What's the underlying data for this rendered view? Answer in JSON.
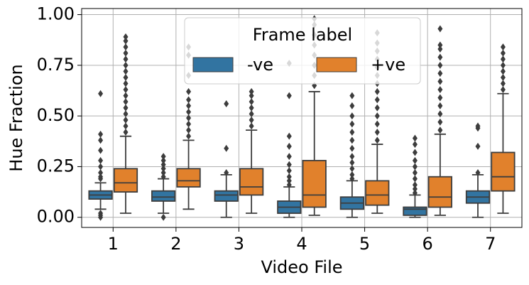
{
  "chart_data": {
    "type": "box",
    "xlabel": "Video File",
    "ylabel": "Hue Fraction",
    "categories": [
      "1",
      "2",
      "3",
      "4",
      "5",
      "6",
      "7"
    ],
    "ylim": [
      -0.05,
      1.03
    ],
    "yticks": [
      {
        "value": 0,
        "label": "0.00"
      },
      {
        "value": 0.25,
        "label": "0.25"
      },
      {
        "value": 0.5,
        "label": "0.50"
      },
      {
        "value": 0.75,
        "label": "0.75"
      },
      {
        "value": 1,
        "label": "1.00"
      }
    ],
    "grid": true,
    "legend_title": "Frame label",
    "legend_position": "upper-center",
    "series": [
      {
        "name": "-ve",
        "color": "#3274a1",
        "q1": [
          0.09,
          0.08,
          0.08,
          0.02,
          0.04,
          0.01,
          0.07
        ],
        "median": [
          0.11,
          0.1,
          0.11,
          0.05,
          0.07,
          0.04,
          0.1
        ],
        "q3": [
          0.13,
          0.13,
          0.13,
          0.08,
          0.1,
          0.05,
          0.13
        ],
        "whisker_low": [
          0.04,
          0.02,
          0,
          0,
          0,
          0,
          0
        ],
        "whisker_high": [
          0.17,
          0.19,
          0.21,
          0.15,
          0.18,
          0.11,
          0.21
        ],
        "outliers": [
          [
            0.0,
            0.01,
            0.02,
            0.19,
            0.2,
            0.22,
            0.25,
            0.28,
            0.33,
            0.38,
            0.41,
            0.61
          ],
          [
            0.0,
            0.2,
            0.22,
            0.24,
            0.26,
            0.28,
            0.3
          ],
          [
            0.22,
            0.34,
            0.56
          ],
          [
            0.16,
            0.18,
            0.2,
            0.23,
            0.26,
            0.3,
            0.35,
            0.4,
            0.6,
            0.76
          ],
          [
            0.19,
            0.21,
            0.24,
            0.27,
            0.3,
            0.34,
            0.38,
            0.42,
            0.46,
            0.5,
            0.55,
            0.6
          ],
          [
            0.12,
            0.14,
            0.16,
            0.19,
            0.22,
            0.25,
            0.28,
            0.32,
            0.36,
            0.39
          ],
          [
            0.22,
            0.35,
            0.44,
            0.45
          ]
        ]
      },
      {
        "name": "+ve",
        "color": "#e1812c",
        "q1": [
          0.125,
          0.15,
          0.11,
          0.05,
          0.06,
          0.05,
          0.13
        ],
        "median": [
          0.17,
          0.18,
          0.15,
          0.11,
          0.11,
          0.1,
          0.2
        ],
        "q3": [
          0.24,
          0.24,
          0.24,
          0.28,
          0.18,
          0.2,
          0.32
        ],
        "whisker_low": [
          0.02,
          0.04,
          0.02,
          0.01,
          0.02,
          0.01,
          0.02
        ],
        "whisker_high": [
          0.4,
          0.38,
          0.43,
          0.62,
          0.36,
          0.41,
          0.61
        ],
        "outliers": [
          [
            0.42,
            0.45,
            0.48,
            0.51,
            0.54,
            0.57,
            0.6,
            0.63,
            0.66,
            0.69,
            0.72,
            0.75,
            0.78,
            0.81,
            0.84,
            0.87,
            0.89
          ],
          [
            0.4,
            0.43,
            0.46,
            0.49,
            0.52,
            0.55,
            0.58,
            0.62,
            0.7,
            0.8,
            0.84
          ],
          [
            0.45,
            0.48,
            0.51,
            0.54,
            0.57,
            0.6,
            0.62
          ],
          [
            0.65,
            0.7,
            0.75,
            0.8,
            0.85,
            0.9,
            0.95,
            0.98
          ],
          [
            0.38,
            0.42,
            0.46,
            0.5,
            0.54,
            0.58,
            0.62,
            0.66,
            0.7,
            0.74,
            0.78,
            0.82,
            0.86,
            0.91
          ],
          [
            0.43,
            0.47,
            0.51,
            0.55,
            0.59,
            0.63,
            0.67,
            0.71,
            0.75,
            0.79,
            0.83,
            0.85,
            0.93
          ],
          [
            0.63,
            0.66,
            0.69,
            0.72,
            0.75,
            0.78,
            0.81,
            0.84
          ]
        ]
      }
    ]
  }
}
